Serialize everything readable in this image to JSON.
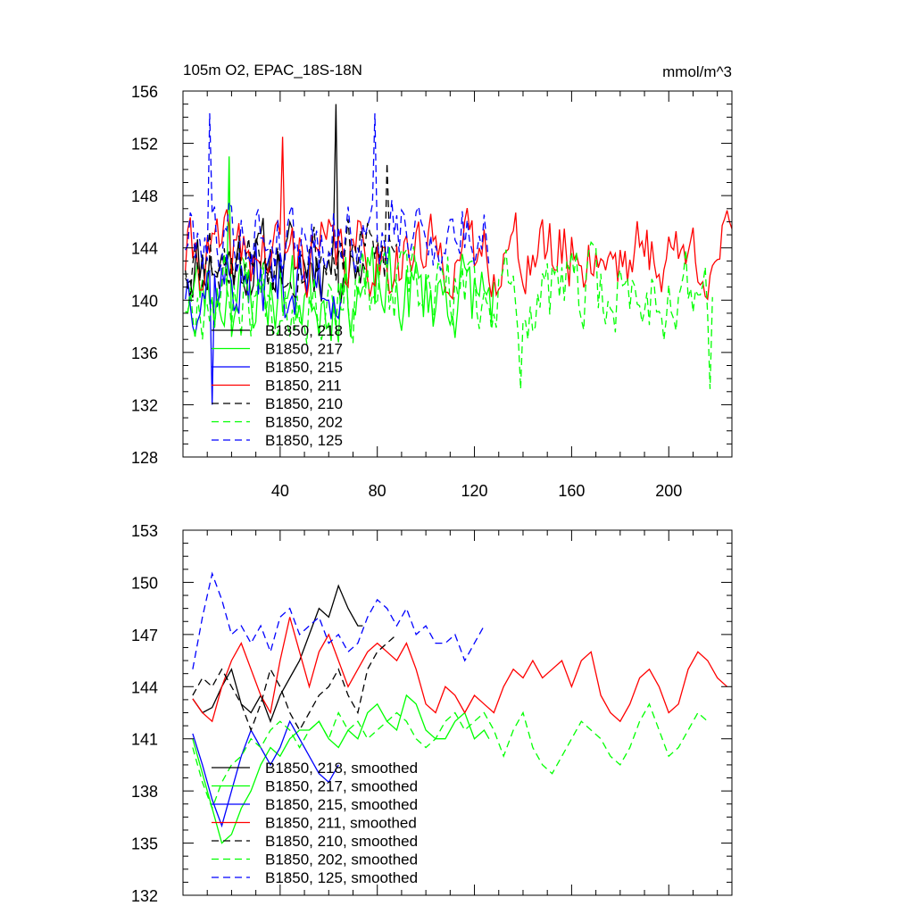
{
  "colors": {
    "black": "#000000",
    "green": "#00ff00",
    "blue": "#0000ff",
    "red": "#ff0000"
  },
  "chart_data": [
    {
      "type": "line",
      "title": "105m O2, EPAC_18S-18N",
      "units": "mmol/m^3",
      "xlim": [
        0,
        226
      ],
      "ylim": [
        128,
        156
      ],
      "yticks": [
        "128",
        "132",
        "136",
        "140",
        "144",
        "148",
        "152",
        "156"
      ],
      "xticks": [
        "40",
        "80",
        "120",
        "160",
        "200"
      ],
      "legend_position": "bottom-left",
      "legend": [
        "B1850, 218",
        "B1850, 217",
        "B1850, 215",
        "B1850, 211",
        "B1850, 210",
        "B1850, 202",
        "B1850, 125"
      ],
      "series": [
        {
          "name": "B1850, 218",
          "color": "black",
          "dash": "solid",
          "length": 75,
          "base": 143.0,
          "amp": 3.5,
          "seed": 11,
          "peaks": [
            [
              63,
              155.0
            ]
          ]
        },
        {
          "name": "B1850, 217",
          "color": "green",
          "dash": "solid",
          "length": 128,
          "base": 140.5,
          "amp": 4.0,
          "seed": 23,
          "peaks": [
            [
              19,
              151.0
            ]
          ]
        },
        {
          "name": "B1850, 215",
          "color": "blue",
          "dash": "solid",
          "length": 65,
          "base": 141.5,
          "amp": 4.0,
          "seed": 37,
          "peaks": [
            [
              12,
              132.0
            ]
          ]
        },
        {
          "name": "B1850, 211",
          "color": "red",
          "dash": "solid",
          "length": 226,
          "base": 143.5,
          "amp": 3.5,
          "seed": 41,
          "peaks": [
            [
              41,
              152.5
            ]
          ]
        },
        {
          "name": "B1850, 210",
          "color": "black",
          "dash": "dashed",
          "length": 88,
          "base": 143.5,
          "amp": 3.5,
          "seed": 53,
          "peaks": [
            [
              84,
              150.5
            ]
          ]
        },
        {
          "name": "B1850, 202",
          "color": "green",
          "dash": "dashed",
          "length": 218,
          "base": 140.5,
          "amp": 4.0,
          "seed": 67,
          "peaks": [
            [
              139,
              133.2
            ],
            [
              217,
              133.2
            ]
          ]
        },
        {
          "name": "B1850, 125",
          "color": "blue",
          "dash": "dashed",
          "length": 126,
          "base": 145.0,
          "amp": 3.5,
          "seed": 79,
          "peaks": [
            [
              11,
              154.3
            ],
            [
              79,
              154.3
            ]
          ]
        }
      ]
    },
    {
      "type": "line",
      "title": "",
      "xlim": [
        0,
        226
      ],
      "ylim": [
        132,
        153
      ],
      "yticks": [
        "132",
        "135",
        "138",
        "141",
        "144",
        "147",
        "150",
        "153"
      ],
      "xticks": [],
      "legend_position": "bottom-left",
      "legend": [
        "B1850, 218, smoothed",
        "B1850, 217, smoothed",
        "B1850, 215, smoothed",
        "B1850, 211, smoothed",
        "B1850, 210, smoothed",
        "B1850, 202, smoothed",
        "B1850, 125, smoothed"
      ],
      "series": [
        {
          "name": "B1850, 218, smoothed",
          "color": "black",
          "dash": "solid",
          "x": [
            4,
            8,
            12,
            16,
            20,
            24,
            28,
            32,
            36,
            40,
            44,
            48,
            52,
            56,
            60,
            64,
            68,
            72,
            74
          ],
          "y": [
            143.3,
            142.5,
            142.8,
            144.0,
            145.0,
            143.0,
            142.5,
            143.5,
            142.0,
            143.5,
            144.5,
            145.5,
            147.0,
            148.5,
            148.0,
            149.8,
            148.5,
            147.5,
            147.5
          ]
        },
        {
          "name": "B1850, 217, smoothed",
          "color": "green",
          "dash": "solid",
          "x": [
            4,
            8,
            12,
            16,
            20,
            24,
            28,
            32,
            36,
            40,
            44,
            48,
            52,
            56,
            60,
            64,
            68,
            72,
            76,
            80,
            84,
            88,
            92,
            96,
            100,
            104,
            108,
            112,
            116,
            120,
            124,
            126
          ],
          "y": [
            141.0,
            139.0,
            137.0,
            135.0,
            135.5,
            137.0,
            138.0,
            139.5,
            140.5,
            140.0,
            141.0,
            141.5,
            141.5,
            142.0,
            141.0,
            140.5,
            141.5,
            141.0,
            142.5,
            143.0,
            142.0,
            141.5,
            143.5,
            143.0,
            141.5,
            141.0,
            141.0,
            142.0,
            142.5,
            141.0,
            141.5,
            141.0
          ]
        },
        {
          "name": "B1850, 215, smoothed",
          "color": "blue",
          "dash": "solid",
          "x": [
            4,
            8,
            12,
            16,
            20,
            24,
            28,
            32,
            36,
            40,
            44,
            48,
            52,
            56,
            60,
            64
          ],
          "y": [
            141.3,
            139.5,
            137.5,
            136.0,
            138.0,
            140.0,
            141.5,
            140.5,
            139.5,
            140.5,
            142.0,
            141.0,
            140.0,
            139.0,
            138.5,
            139.5
          ]
        },
        {
          "name": "B1850, 211, smoothed",
          "color": "red",
          "dash": "solid",
          "x": [
            4,
            8,
            12,
            16,
            20,
            24,
            28,
            32,
            36,
            40,
            44,
            48,
            52,
            56,
            60,
            64,
            68,
            72,
            76,
            80,
            84,
            88,
            92,
            96,
            100,
            104,
            108,
            112,
            116,
            120,
            124,
            128,
            132,
            136,
            140,
            144,
            148,
            152,
            156,
            160,
            164,
            168,
            172,
            176,
            180,
            184,
            188,
            192,
            196,
            200,
            204,
            208,
            212,
            216,
            220,
            224
          ],
          "y": [
            143.3,
            142.5,
            142.0,
            144.0,
            145.5,
            146.5,
            145.0,
            143.5,
            142.5,
            145.5,
            148.0,
            146.0,
            144.0,
            146.0,
            147.0,
            145.5,
            144.0,
            145.0,
            146.0,
            146.5,
            146.0,
            145.5,
            146.5,
            145.0,
            143.0,
            142.5,
            144.0,
            143.5,
            142.5,
            143.5,
            143.0,
            142.5,
            144.0,
            145.0,
            144.5,
            145.5,
            144.5,
            145.0,
            145.5,
            144.0,
            145.5,
            146.0,
            143.5,
            142.5,
            142.0,
            143.0,
            144.5,
            145.0,
            144.0,
            142.5,
            143.0,
            145.0,
            146.0,
            145.5,
            144.5,
            144.0
          ]
        },
        {
          "name": "B1850, 210, smoothed",
          "color": "black",
          "dash": "dashed",
          "x": [
            4,
            8,
            12,
            16,
            20,
            24,
            28,
            32,
            36,
            40,
            44,
            48,
            52,
            56,
            60,
            64,
            68,
            72,
            76,
            80,
            84,
            88
          ],
          "y": [
            143.5,
            144.5,
            144.0,
            145.0,
            144.0,
            143.0,
            141.5,
            143.0,
            145.0,
            144.0,
            142.5,
            141.5,
            142.5,
            143.5,
            144.0,
            145.0,
            143.5,
            142.5,
            145.0,
            146.0,
            146.5,
            147.0
          ]
        },
        {
          "name": "B1850, 202, smoothed",
          "color": "green",
          "dash": "dashed",
          "x": [
            4,
            8,
            12,
            16,
            20,
            24,
            28,
            32,
            36,
            40,
            44,
            48,
            52,
            56,
            60,
            64,
            68,
            72,
            76,
            80,
            84,
            88,
            92,
            96,
            100,
            104,
            108,
            112,
            116,
            120,
            124,
            128,
            132,
            136,
            140,
            144,
            148,
            152,
            156,
            160,
            164,
            168,
            172,
            176,
            180,
            184,
            188,
            192,
            196,
            200,
            204,
            208,
            212,
            216
          ],
          "y": [
            140.5,
            138.5,
            137.0,
            138.5,
            139.5,
            140.0,
            141.0,
            140.5,
            141.5,
            142.0,
            141.5,
            140.5,
            141.5,
            142.0,
            141.0,
            142.5,
            141.5,
            142.0,
            141.0,
            141.5,
            142.0,
            142.5,
            142.0,
            141.0,
            140.5,
            141.0,
            142.0,
            142.5,
            141.5,
            142.0,
            142.5,
            141.5,
            140.0,
            141.5,
            142.5,
            140.5,
            139.5,
            139.0,
            140.0,
            141.0,
            142.0,
            141.5,
            141.0,
            140.0,
            139.5,
            140.5,
            142.0,
            143.0,
            141.5,
            140.0,
            140.5,
            141.5,
            142.5,
            142.0
          ]
        },
        {
          "name": "B1850, 125, smoothed",
          "color": "blue",
          "dash": "dashed",
          "x": [
            4,
            8,
            12,
            16,
            20,
            24,
            28,
            32,
            36,
            40,
            44,
            48,
            52,
            56,
            60,
            64,
            68,
            72,
            76,
            80,
            84,
            88,
            92,
            96,
            100,
            104,
            108,
            112,
            116,
            120,
            124
          ],
          "y": [
            145.0,
            148.0,
            150.5,
            149.0,
            147.0,
            147.5,
            146.5,
            147.5,
            146.0,
            148.0,
            148.5,
            147.0,
            147.5,
            148.0,
            146.5,
            147.0,
            146.0,
            146.5,
            148.0,
            149.0,
            148.5,
            147.5,
            148.5,
            147.0,
            147.5,
            146.5,
            146.5,
            147.0,
            145.5,
            146.5,
            147.5
          ]
        }
      ]
    }
  ]
}
